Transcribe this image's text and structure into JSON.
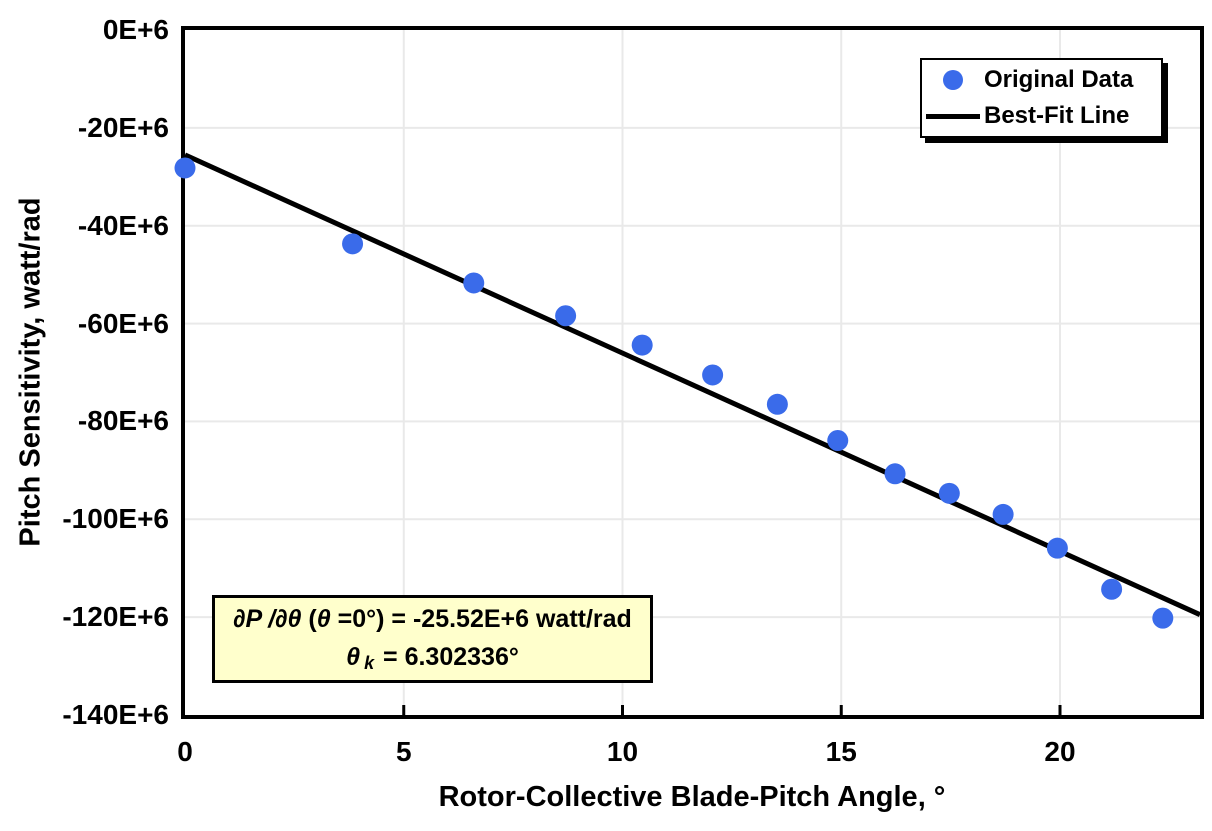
{
  "axes": {
    "x_title": "Rotor-Collective Blade-Pitch Angle, °",
    "y_title": "Pitch Sensitivity, watt/rad"
  },
  "legend": {
    "items": [
      {
        "label": "Original Data",
        "marker": "circle",
        "color": "#3A6BEA"
      },
      {
        "label": "Best-Fit Line",
        "marker": "line",
        "color": "#000000"
      }
    ]
  },
  "annotation": {
    "bg_color": "#FFFFCC",
    "line1_a": "∂P /∂θ",
    "line1_b": " (",
    "line1_c": "θ",
    "line1_d": " =0°) = -25.52E+6 watt/rad",
    "line2_a": "θ",
    "line2_b": "k",
    "line2_c": " = 6.302336°"
  },
  "chart_data": {
    "type": "scatter",
    "title": "",
    "xlabel": "Rotor-Collective Blade-Pitch Angle, °",
    "ylabel": "Pitch Sensitivity, watt/rad",
    "y_unit_scale": "values in millions (E+6) of watt/rad",
    "xlim": [
      0,
      23.2
    ],
    "ylim_E6": [
      -140,
      0
    ],
    "grid": true,
    "grid_color": "#E9E9E9",
    "legend_position": "top-right",
    "x_ticks": [
      {
        "v": 0,
        "label": "0"
      },
      {
        "v": 5,
        "label": "5"
      },
      {
        "v": 10,
        "label": "10"
      },
      {
        "v": 15,
        "label": "15"
      },
      {
        "v": 20,
        "label": "20"
      }
    ],
    "y_ticks": [
      {
        "v": 0,
        "label": "0E+6"
      },
      {
        "v": -20,
        "label": "-20E+6"
      },
      {
        "v": -40,
        "label": "-40E+6"
      },
      {
        "v": -60,
        "label": "-60E+6"
      },
      {
        "v": -80,
        "label": "-80E+6"
      },
      {
        "v": -100,
        "label": "-100E+6"
      },
      {
        "v": -120,
        "label": "-120E+6"
      },
      {
        "v": -140,
        "label": "-140E+6"
      }
    ],
    "series": [
      {
        "name": "Original Data",
        "type": "scatter",
        "color": "#3A6BEA",
        "marker_radius": 10.5,
        "x": [
          0.0,
          3.83,
          6.6,
          8.7,
          10.45,
          12.06,
          13.54,
          14.92,
          16.23,
          17.47,
          18.7,
          19.94,
          21.18,
          22.35
        ],
        "y_E6": [
          -28.2,
          -43.7,
          -51.7,
          -58.4,
          -64.4,
          -70.5,
          -76.5,
          -83.9,
          -90.7,
          -94.7,
          -99.0,
          -105.9,
          -114.3,
          -120.2
        ]
      },
      {
        "name": "Best-Fit Line",
        "type": "line",
        "color": "#000000",
        "width": 5,
        "x": [
          0,
          23.2
        ],
        "y_E6": [
          -25.52,
          -119.5
        ]
      }
    ]
  }
}
